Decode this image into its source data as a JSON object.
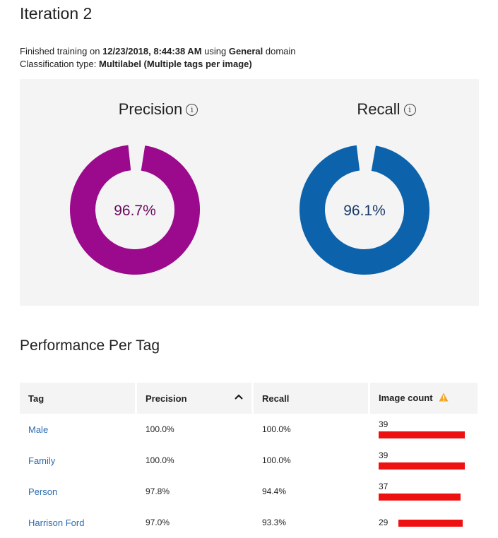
{
  "page": {
    "title": "Iteration 2",
    "training_prefix": "Finished training on ",
    "training_datetime": "12/23/2018, 8:44:38 AM",
    "training_mid": " using ",
    "domain": "General",
    "training_suffix": " domain",
    "classification_prefix": "Classification type: ",
    "classification_type": "Multilabel (Multiple tags per image)"
  },
  "metrics": {
    "precision": {
      "label": "Precision",
      "value_text": "96.7%",
      "value": 96.7,
      "color": "#9b0a8c",
      "text_color": "#6a0a5f"
    },
    "recall": {
      "label": "Recall",
      "value_text": "96.1%",
      "value": 96.1,
      "color": "#0c63ab",
      "text_color": "#1a3a6b"
    }
  },
  "performance": {
    "title": "Performance Per Tag",
    "columns": {
      "tag": "Tag",
      "precision": "Precision",
      "recall": "Recall",
      "image_count": "Image count"
    },
    "bar_color": "#ee1111",
    "max_count": 39,
    "rows": [
      {
        "tag": "Male",
        "precision": "100.0%",
        "recall": "100.0%",
        "count": 39
      },
      {
        "tag": "Family",
        "precision": "100.0%",
        "recall": "100.0%",
        "count": 39
      },
      {
        "tag": "Person",
        "precision": "97.8%",
        "recall": "94.4%",
        "count": 37
      },
      {
        "tag": "Harrison Ford",
        "precision": "97.0%",
        "recall": "93.3%",
        "count": 29
      }
    ]
  },
  "icons": {
    "info": "info-icon",
    "sort": "chevron-up-icon",
    "warning": "warning-icon"
  }
}
